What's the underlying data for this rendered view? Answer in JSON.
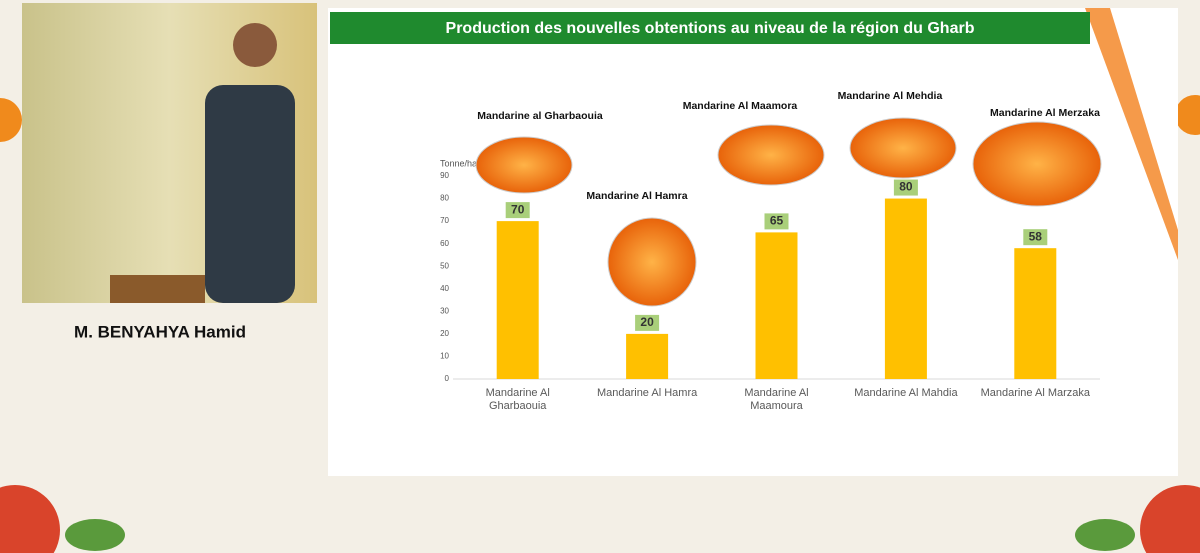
{
  "speaker": {
    "name": "M. BENYAHYA Hamid"
  },
  "chart_data": {
    "type": "bar",
    "title": "Production des nouvelles obtentions au niveau de la région du Gharb",
    "y_label": "Tonne/ha",
    "categories": [
      "Mandarine Al Gharbaouia",
      "Mandarine Al Hamra",
      "Mandarine Al Maamoura",
      "Mandarine Al Mahdia",
      "Mandarine Al Marzaka"
    ],
    "values": [
      70,
      20,
      65,
      80,
      58
    ],
    "color": "#ffc000",
    "ylim": [
      0,
      90
    ],
    "yticks": [
      0,
      10,
      20,
      30,
      40,
      50,
      60,
      70,
      80,
      90
    ],
    "annotations": [
      "Mandarine al Gharbaouia",
      "Mandarine Al Hamra",
      "Mandarine Al Maamora",
      "Mandarine Al Mehdia",
      "Mandarine Al Merzaka"
    ]
  }
}
